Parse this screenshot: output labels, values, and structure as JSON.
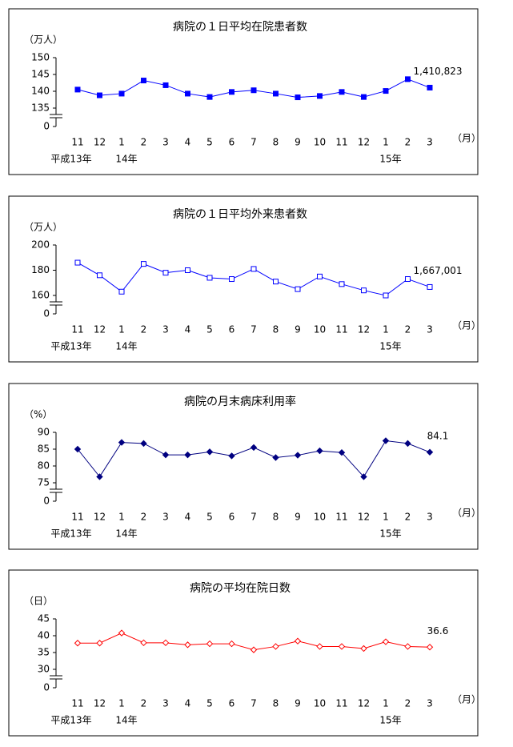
{
  "chart_data": [
    {
      "type": "line",
      "title": "病院の１日平均在院患者数",
      "y_label": "（万人）",
      "x_label": "（月）",
      "categories": [
        "11",
        "12",
        "1",
        "2",
        "3",
        "4",
        "5",
        "6",
        "7",
        "8",
        "9",
        "10",
        "11",
        "12",
        "1",
        "2",
        "3"
      ],
      "category_groups": [
        "平成13年",
        null,
        "14年",
        null,
        null,
        null,
        null,
        null,
        null,
        null,
        null,
        null,
        null,
        null,
        "15年",
        null,
        null
      ],
      "values": [
        140.5,
        138.8,
        139.3,
        143.2,
        141.8,
        139.3,
        138.3,
        139.8,
        140.3,
        139.3,
        138.2,
        138.6,
        139.8,
        138.3,
        140.1,
        143.6,
        141.0823
      ],
      "value_labels": [
        null,
        null,
        null,
        null,
        null,
        null,
        null,
        null,
        null,
        null,
        null,
        null,
        null,
        null,
        null,
        null,
        "1,410,823"
      ],
      "color": "#0000ff",
      "marker": "square",
      "ylim": [
        135,
        150
      ],
      "yticks": [
        0,
        135,
        140,
        145,
        150
      ],
      "axis_break": true
    },
    {
      "type": "line",
      "title": "病院の１日平均外来患者数",
      "y_label": "（万人）",
      "x_label": "（月）",
      "categories": [
        "11",
        "12",
        "1",
        "2",
        "3",
        "4",
        "5",
        "6",
        "7",
        "8",
        "9",
        "10",
        "11",
        "12",
        "1",
        "2",
        "3"
      ],
      "category_groups": [
        "平成13年",
        null,
        "14年",
        null,
        null,
        null,
        null,
        null,
        null,
        null,
        null,
        null,
        null,
        null,
        "15年",
        null,
        null
      ],
      "values": [
        186,
        176,
        163,
        185,
        178,
        180,
        174,
        173,
        181,
        171,
        165,
        175,
        169,
        164,
        160,
        173,
        166.7001
      ],
      "value_labels": [
        null,
        null,
        null,
        null,
        null,
        null,
        null,
        null,
        null,
        null,
        null,
        null,
        null,
        null,
        null,
        null,
        "1,667,001"
      ],
      "color": "#0000ff",
      "marker": "square-open",
      "ylim": [
        160,
        200
      ],
      "yticks": [
        0,
        160,
        180,
        200
      ],
      "axis_break": true
    },
    {
      "type": "line",
      "title": "病院の月末病床利用率",
      "y_label": "（%）",
      "x_label": "（月）",
      "categories": [
        "11",
        "12",
        "1",
        "2",
        "3",
        "4",
        "5",
        "6",
        "7",
        "8",
        "9",
        "10",
        "11",
        "12",
        "1",
        "2",
        "3"
      ],
      "category_groups": [
        "平成13年",
        null,
        "14年",
        null,
        null,
        null,
        null,
        null,
        null,
        null,
        null,
        null,
        null,
        null,
        "15年",
        null,
        null
      ],
      "values": [
        85.0,
        76.8,
        87.0,
        86.7,
        83.3,
        83.3,
        84.2,
        83.0,
        85.5,
        82.5,
        83.2,
        84.5,
        84.0,
        76.8,
        87.5,
        86.7,
        84.1
      ],
      "value_labels": [
        null,
        null,
        null,
        null,
        null,
        null,
        null,
        null,
        null,
        null,
        null,
        null,
        null,
        null,
        null,
        null,
        "84.1"
      ],
      "color": "#000080",
      "marker": "diamond",
      "ylim": [
        75,
        90
      ],
      "yticks": [
        0,
        75,
        80,
        85,
        90
      ],
      "axis_break": true
    },
    {
      "type": "line",
      "title": "病院の平均在院日数",
      "y_label": "（日）",
      "x_label": "（月）",
      "categories": [
        "11",
        "12",
        "1",
        "2",
        "3",
        "4",
        "5",
        "6",
        "7",
        "8",
        "9",
        "10",
        "11",
        "12",
        "1",
        "2",
        "3"
      ],
      "category_groups": [
        "平成13年",
        null,
        "14年",
        null,
        null,
        null,
        null,
        null,
        null,
        null,
        null,
        null,
        null,
        null,
        "15年",
        null,
        null
      ],
      "values": [
        37.8,
        37.8,
        40.8,
        37.9,
        37.9,
        37.3,
        37.6,
        37.6,
        35.8,
        36.8,
        38.4,
        36.8,
        36.8,
        36.2,
        38.2,
        36.8,
        36.6
      ],
      "value_labels": [
        null,
        null,
        null,
        null,
        null,
        null,
        null,
        null,
        null,
        null,
        null,
        null,
        null,
        null,
        null,
        null,
        "36.6"
      ],
      "color": "#ff0000",
      "marker": "diamond-open",
      "ylim": [
        30,
        45
      ],
      "yticks": [
        0,
        30,
        35,
        40,
        45
      ],
      "axis_break": true
    }
  ]
}
